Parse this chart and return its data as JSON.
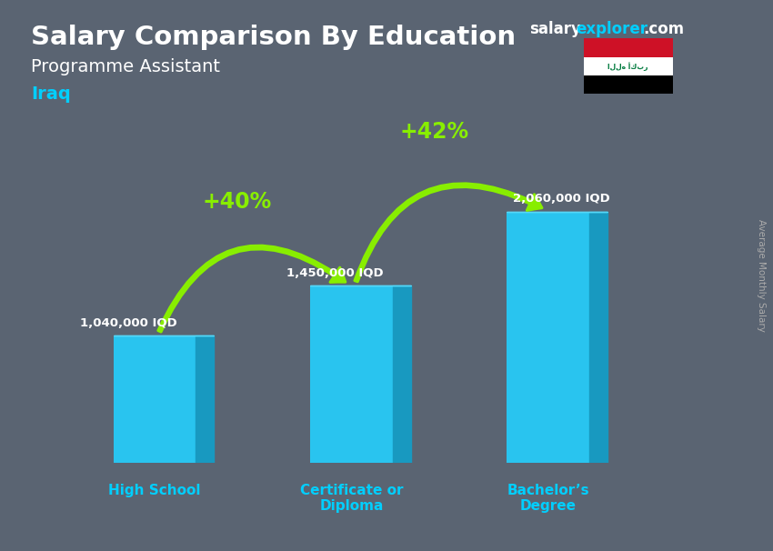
{
  "title_main": "Salary Comparison By Education",
  "title_sub": "Programme Assistant",
  "title_country": "Iraq",
  "categories": [
    "High School",
    "Certificate or\nDiploma",
    "Bachelor’s\nDegree"
  ],
  "values": [
    1040000,
    1450000,
    2060000
  ],
  "value_labels": [
    "1,040,000 IQD",
    "1,450,000 IQD",
    "2,060,000 IQD"
  ],
  "pct_labels": [
    "+40%",
    "+42%"
  ],
  "bar_color_front": "#29c4ef",
  "bar_color_top": "#55d8f8",
  "bar_color_side": "#1899c0",
  "background_color": "#5a6472",
  "title_color": "#ffffff",
  "subtitle_color": "#ffffff",
  "country_color": "#00cfff",
  "value_label_color": "#ffffff",
  "pct_color": "#88ee00",
  "xlabel_color": "#00cfff",
  "ylabel_text": "Average Monthly Salary",
  "ylabel_color": "#aaaaaa",
  "site_salary_color": "#ffffff",
  "site_explorer_color": "#00cfff",
  "site_com_color": "#ffffff",
  "ylim": [
    0,
    2800000
  ],
  "flag_red": "#ce1126",
  "flag_white": "#ffffff",
  "flag_black": "#000000",
  "flag_green": "#007a3d"
}
